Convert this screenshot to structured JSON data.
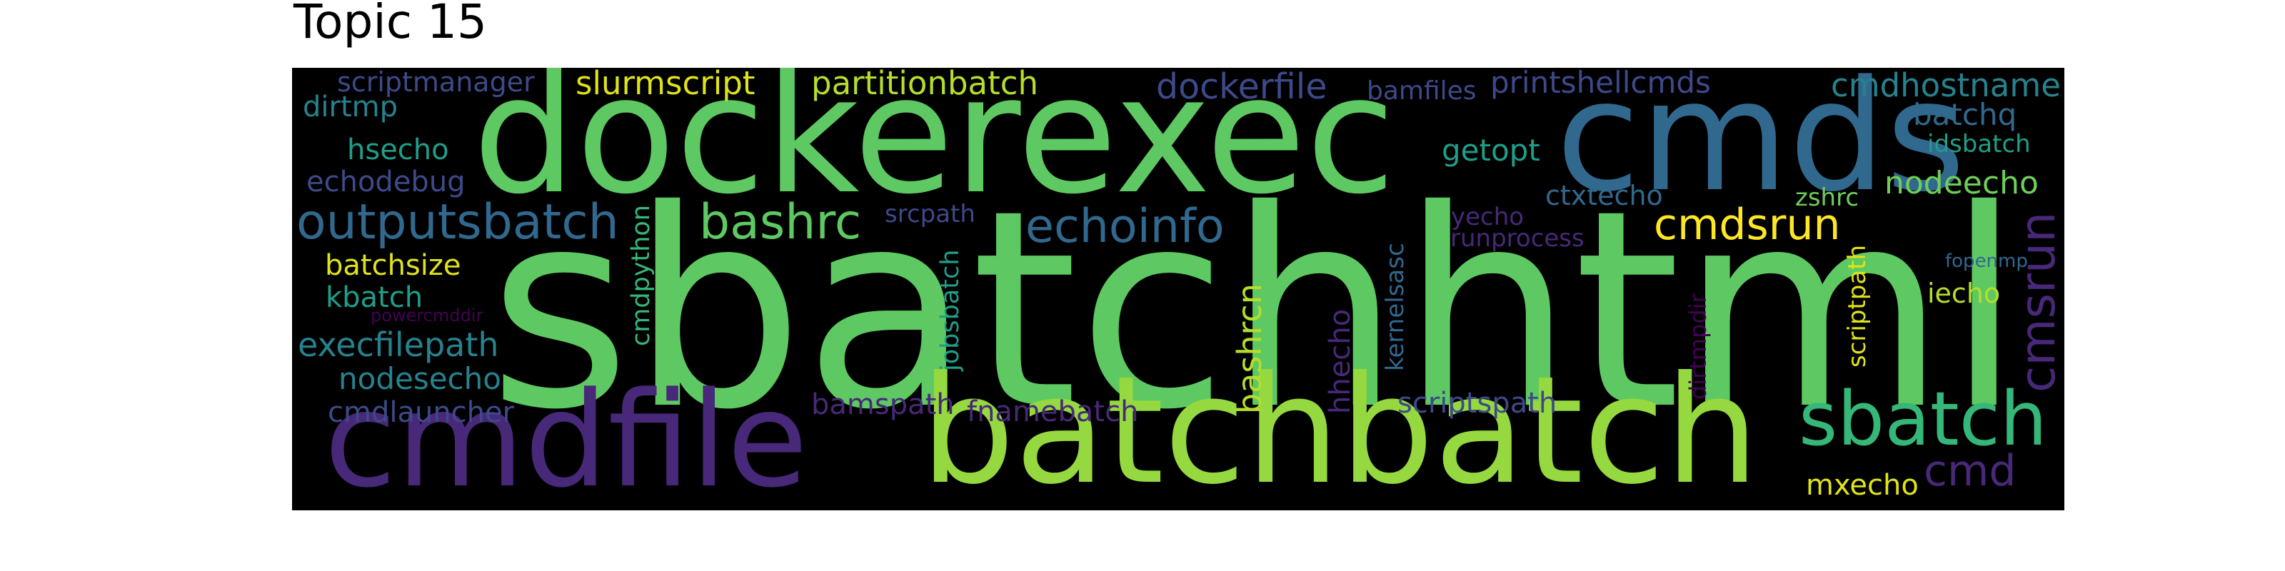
{
  "title": "Topic 15",
  "words": {
    "sbatchhtml": {
      "text": "sbatchhtml",
      "color": "#5ec962"
    },
    "dockerexec": {
      "text": "dockerexec",
      "color": "#5ec962"
    },
    "cmds": {
      "text": "cmds",
      "color": "#31688e"
    },
    "cmdfile": {
      "text": "cmdfile",
      "color": "#482878"
    },
    "batchbatch": {
      "text": "batchbatch",
      "color": "#95d840"
    },
    "sbatch": {
      "text": "sbatch",
      "color": "#35b779"
    },
    "outputsbatch": {
      "text": "outputsbatch",
      "color": "#31688e"
    },
    "bashrc": {
      "text": "bashrc",
      "color": "#5ec962"
    },
    "echoinfo": {
      "text": "echoinfo",
      "color": "#31688e"
    },
    "cmdsrun": {
      "text": "cmdsrun",
      "color": "#fde725"
    },
    "cmsrun": {
      "text": "cmsrun",
      "color": "#482878"
    },
    "cmd": {
      "text": "cmd",
      "color": "#482878"
    },
    "scriptmanager": {
      "text": "scriptmanager",
      "color": "#3e4989"
    },
    "slurmscript": {
      "text": "slurmscript",
      "color": "#dfe318"
    },
    "partitionbatch": {
      "text": "partitionbatch",
      "color": "#b5de2b"
    },
    "dockerfile": {
      "text": "dockerfile",
      "color": "#3e4989"
    },
    "bamfiles": {
      "text": "bamfiles",
      "color": "#3e4989"
    },
    "printshellcmds": {
      "text": "printshellcmds",
      "color": "#3e4989"
    },
    "cmdhostname": {
      "text": "cmdhostname",
      "color": "#26828e"
    },
    "dirtmp": {
      "text": "dirtmp",
      "color": "#26828e"
    },
    "batchq": {
      "text": "batchq",
      "color": "#31688e"
    },
    "hsecho": {
      "text": "hsecho",
      "color": "#1f9e89"
    },
    "getopt": {
      "text": "getopt",
      "color": "#1f9e89"
    },
    "idsbatch": {
      "text": "idsbatch",
      "color": "#1f9e89"
    },
    "echodebug": {
      "text": "echodebug",
      "color": "#3e4989"
    },
    "nodeecho": {
      "text": "nodeecho",
      "color": "#6ece58"
    },
    "ctxtecho": {
      "text": "ctxtecho",
      "color": "#31688e"
    },
    "zshrc": {
      "text": "zshrc",
      "color": "#6ece58"
    },
    "srcpath": {
      "text": "srcpath",
      "color": "#3e4989"
    },
    "yecho": {
      "text": "yecho",
      "color": "#482878"
    },
    "runprocess": {
      "text": "runprocess",
      "color": "#482878"
    },
    "batchsize": {
      "text": "batchsize",
      "color": "#dfe318"
    },
    "fopenmp": {
      "text": "fopenmp",
      "color": "#31688e"
    },
    "kbatch": {
      "text": "kbatch",
      "color": "#1f9e89"
    },
    "iecho": {
      "text": "iecho",
      "color": "#b5de2b"
    },
    "powercmddir": {
      "text": "powercmddir",
      "color": "#440154"
    },
    "execfilepath": {
      "text": "execfilepath",
      "color": "#26828e"
    },
    "nodesecho": {
      "text": "nodesecho",
      "color": "#26828e"
    },
    "cmdlauncher": {
      "text": "cmdlauncher",
      "color": "#3e4989"
    },
    "bamspath": {
      "text": "bamspath",
      "color": "#482878"
    },
    "fnamebatch": {
      "text": "fnamebatch",
      "color": "#482878"
    },
    "scriptspath": {
      "text": "scriptspath",
      "color": "#3e4989"
    },
    "mxecho": {
      "text": "mxecho",
      "color": "#dfe318"
    },
    "cmdpython": {
      "text": "cmdpython",
      "color": "#35b779"
    },
    "jobsbatch": {
      "text": "jobsbatch",
      "color": "#1f9e89"
    },
    "bashrcn": {
      "text": "bashrcn",
      "color": "#b5de2b"
    },
    "hhecho": {
      "text": "hhecho",
      "color": "#482878"
    },
    "kernelsasc": {
      "text": "kernelsasc",
      "color": "#31688e"
    },
    "dirtmpdir": {
      "text": "dirtmpdir",
      "color": "#440154"
    },
    "scriptpath": {
      "text": "scriptpath",
      "color": "#dfe318"
    }
  }
}
